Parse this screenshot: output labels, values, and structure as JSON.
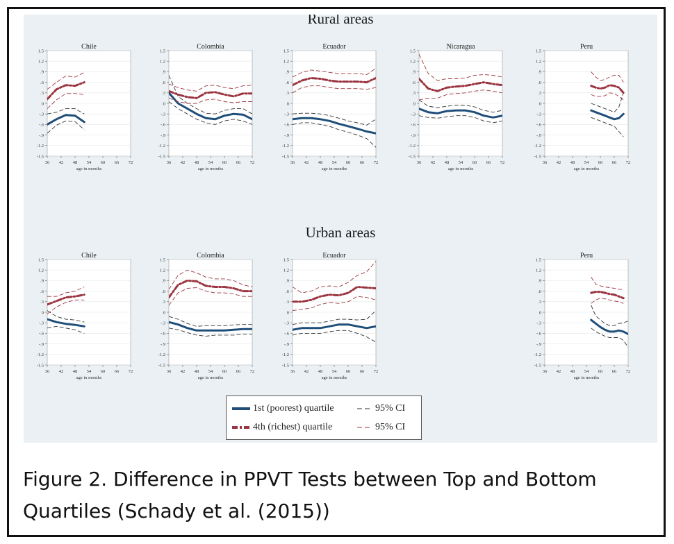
{
  "caption_line1": "Figure 2.  Difference in PPVT Tests between Top and Bottom",
  "caption_line2": "Quartiles  (Schady et al. (2015))",
  "rural_title": "Rural areas",
  "urban_title": "Urban areas",
  "legend": {
    "q1_label": "1st (poorest) quartile",
    "q4_label": "4th (richest) quartile",
    "ci_label_1": "95% CI",
    "ci_label_2": "95% CI"
  },
  "colors": {
    "q1": "#1f4e79",
    "q4": "#9b3540",
    "ci": "#333333"
  },
  "chart_data": [
    {
      "type": "line",
      "group": "Rural areas",
      "title": "Chile",
      "xlabel": "age in months",
      "xlim": [
        36,
        72
      ],
      "ylim": [
        -1.5,
        1.5
      ],
      "series": [
        {
          "name": "1st (poorest) quartile",
          "x": [
            36,
            40,
            44,
            48,
            52
          ],
          "y": [
            -0.6,
            -0.45,
            -0.33,
            -0.35,
            -0.53
          ],
          "ci_low": [
            -0.85,
            -0.62,
            -0.5,
            -0.52,
            -0.75
          ],
          "ci_high": [
            -0.3,
            -0.25,
            -0.15,
            -0.15,
            -0.3
          ]
        },
        {
          "name": "4th (richest) quartile",
          "x": [
            36,
            40,
            44,
            48,
            52
          ],
          "y": [
            0.12,
            0.4,
            0.52,
            0.5,
            0.6
          ],
          "ci_low": [
            -0.15,
            0.1,
            0.28,
            0.28,
            0.25
          ],
          "ci_high": [
            0.4,
            0.6,
            0.78,
            0.75,
            0.88
          ]
        }
      ]
    },
    {
      "type": "line",
      "group": "Rural areas",
      "title": "Colombia",
      "xlabel": "age in months",
      "xlim": [
        36,
        72
      ],
      "ylim": [
        -1.5,
        1.5
      ],
      "series": [
        {
          "name": "1st (poorest) quartile",
          "x": [
            36,
            40,
            44,
            48,
            52,
            56,
            60,
            64,
            68,
            72
          ],
          "y": [
            0.3,
            0,
            -0.15,
            -0.3,
            -0.42,
            -0.45,
            -0.35,
            -0.3,
            -0.32,
            -0.45
          ],
          "ci_low": [
            0.05,
            -0.15,
            -0.3,
            -0.45,
            -0.55,
            -0.6,
            -0.5,
            -0.45,
            -0.5,
            -0.6
          ],
          "ci_high": [
            0.8,
            0.2,
            0,
            -0.15,
            -0.28,
            -0.3,
            -0.2,
            -0.15,
            -0.15,
            -0.3
          ]
        },
        {
          "name": "4th (richest) quartile",
          "x": [
            36,
            40,
            44,
            48,
            52,
            56,
            60,
            64,
            68,
            72
          ],
          "y": [
            0.35,
            0.25,
            0.18,
            0.15,
            0.3,
            0.32,
            0.25,
            0.2,
            0.28,
            0.28
          ],
          "ci_low": [
            0.15,
            0.05,
            0,
            0,
            0.1,
            0.12,
            0.05,
            0.02,
            0.05,
            0.05
          ],
          "ci_high": [
            0.55,
            0.45,
            0.38,
            0.35,
            0.5,
            0.52,
            0.45,
            0.42,
            0.5,
            0.52
          ]
        }
      ]
    },
    {
      "type": "line",
      "group": "Rural areas",
      "title": "Ecuador",
      "xlabel": "age in months",
      "xlim": [
        36,
        72
      ],
      "ylim": [
        -1.5,
        1.5
      ],
      "series": [
        {
          "name": "1st (poorest) quartile",
          "x": [
            36,
            40,
            44,
            48,
            52,
            56,
            60,
            64,
            68,
            72
          ],
          "y": [
            -0.45,
            -0.42,
            -0.42,
            -0.45,
            -0.5,
            -0.58,
            -0.65,
            -0.72,
            -0.8,
            -0.85
          ],
          "ci_low": [
            -0.6,
            -0.55,
            -0.55,
            -0.6,
            -0.65,
            -0.75,
            -0.82,
            -0.9,
            -1.0,
            -1.25
          ],
          "ci_high": [
            -0.3,
            -0.28,
            -0.28,
            -0.3,
            -0.35,
            -0.42,
            -0.5,
            -0.55,
            -0.62,
            -0.45
          ]
        },
        {
          "name": "4th (richest) quartile",
          "x": [
            36,
            40,
            44,
            48,
            52,
            56,
            60,
            64,
            68,
            72
          ],
          "y": [
            0.52,
            0.65,
            0.72,
            0.7,
            0.65,
            0.62,
            0.62,
            0.62,
            0.6,
            0.72
          ],
          "ci_low": [
            0.3,
            0.45,
            0.5,
            0.5,
            0.45,
            0.42,
            0.42,
            0.42,
            0.4,
            0.45
          ],
          "ci_high": [
            0.75,
            0.88,
            0.95,
            0.92,
            0.88,
            0.85,
            0.85,
            0.85,
            0.82,
            1.0
          ]
        }
      ]
    },
    {
      "type": "line",
      "group": "Rural areas",
      "title": "Nicaragua",
      "xlabel": "age in months",
      "xlim": [
        36,
        72
      ],
      "ylim": [
        -1.5,
        1.5
      ],
      "series": [
        {
          "name": "1st (poorest) quartile",
          "x": [
            36,
            40,
            44,
            48,
            52,
            56,
            60,
            64,
            68,
            72
          ],
          "y": [
            -0.15,
            -0.25,
            -0.28,
            -0.22,
            -0.2,
            -0.2,
            -0.25,
            -0.35,
            -0.4,
            -0.35
          ],
          "ci_low": [
            -0.35,
            -0.4,
            -0.42,
            -0.38,
            -0.35,
            -0.35,
            -0.4,
            -0.5,
            -0.55,
            -0.5
          ],
          "ci_high": [
            0.1,
            -0.08,
            -0.12,
            -0.08,
            -0.05,
            -0.05,
            -0.1,
            -0.2,
            -0.25,
            -0.2
          ]
        },
        {
          "name": "4th (richest) quartile",
          "x": [
            36,
            40,
            44,
            48,
            52,
            56,
            60,
            64,
            68,
            72
          ],
          "y": [
            0.7,
            0.42,
            0.35,
            0.45,
            0.48,
            0.5,
            0.55,
            0.6,
            0.55,
            0.52
          ],
          "ci_low": [
            0.1,
            0.15,
            0.15,
            0.25,
            0.28,
            0.3,
            0.35,
            0.38,
            0.35,
            0.3
          ],
          "ci_high": [
            1.4,
            0.85,
            0.65,
            0.7,
            0.7,
            0.72,
            0.8,
            0.82,
            0.8,
            0.75
          ]
        }
      ]
    },
    {
      "type": "line",
      "group": "Rural areas",
      "title": "Peru",
      "xlabel": "age in months",
      "xlim": [
        36,
        72
      ],
      "ylim": [
        -1.5,
        1.5
      ],
      "series": [
        {
          "name": "1st (poorest) quartile",
          "x": [
            56,
            58,
            60,
            62,
            64,
            66,
            68,
            70
          ],
          "y": [
            -0.2,
            -0.25,
            -0.3,
            -0.35,
            -0.4,
            -0.45,
            -0.42,
            -0.3
          ],
          "ci_low": [
            -0.4,
            -0.45,
            -0.5,
            -0.55,
            -0.6,
            -0.65,
            -0.8,
            -0.95
          ],
          "ci_high": [
            0,
            -0.05,
            -0.1,
            -0.15,
            -0.2,
            -0.25,
            -0.1,
            0.3
          ]
        },
        {
          "name": "4th (richest) quartile",
          "x": [
            56,
            58,
            60,
            62,
            64,
            66,
            68,
            70
          ],
          "y": [
            0.5,
            0.45,
            0.42,
            0.45,
            0.52,
            0.5,
            0.45,
            0.3
          ],
          "ci_low": [
            0.25,
            0.2,
            0.2,
            0.22,
            0.3,
            0.28,
            0.2,
            0.1
          ],
          "ci_high": [
            0.9,
            0.75,
            0.65,
            0.68,
            0.75,
            0.8,
            0.8,
            0.6
          ]
        }
      ]
    },
    {
      "type": "line",
      "group": "Urban areas",
      "title": "Chile",
      "xlabel": "age in months",
      "xlim": [
        36,
        72
      ],
      "ylim": [
        -1.5,
        1.5
      ],
      "series": [
        {
          "name": "1st (poorest) quartile",
          "x": [
            36,
            40,
            44,
            48,
            52
          ],
          "y": [
            -0.2,
            -0.28,
            -0.33,
            -0.36,
            -0.4
          ],
          "ci_low": [
            -0.45,
            -0.4,
            -0.45,
            -0.5,
            -0.6
          ],
          "ci_high": [
            0.05,
            -0.12,
            -0.2,
            -0.22,
            -0.28
          ]
        },
        {
          "name": "4th (richest) quartile",
          "x": [
            36,
            40,
            44,
            48,
            52
          ],
          "y": [
            0.22,
            0.32,
            0.42,
            0.45,
            0.5
          ],
          "ci_low": [
            -0.05,
            0.15,
            0.28,
            0.35,
            0.35
          ],
          "ci_high": [
            0.45,
            0.45,
            0.55,
            0.6,
            0.72
          ]
        }
      ]
    },
    {
      "type": "line",
      "group": "Urban areas",
      "title": "Colombia",
      "xlabel": "age in months",
      "xlim": [
        36,
        72
      ],
      "ylim": [
        -1.5,
        1.5
      ],
      "series": [
        {
          "name": "1st (poorest) quartile",
          "x": [
            36,
            40,
            44,
            48,
            52,
            56,
            60,
            64,
            68,
            72
          ],
          "y": [
            -0.28,
            -0.35,
            -0.45,
            -0.52,
            -0.52,
            -0.52,
            -0.52,
            -0.5,
            -0.48,
            -0.48
          ],
          "ci_low": [
            -0.45,
            -0.5,
            -0.58,
            -0.65,
            -0.68,
            -0.65,
            -0.65,
            -0.65,
            -0.62,
            -0.62
          ],
          "ci_high": [
            -0.12,
            -0.2,
            -0.32,
            -0.4,
            -0.38,
            -0.38,
            -0.38,
            -0.36,
            -0.35,
            -0.35
          ]
        },
        {
          "name": "4th (richest) quartile",
          "x": [
            36,
            40,
            44,
            48,
            52,
            56,
            60,
            64,
            68,
            72
          ],
          "y": [
            0.42,
            0.78,
            0.9,
            0.88,
            0.75,
            0.72,
            0.72,
            0.68,
            0.6,
            0.6
          ],
          "ci_low": [
            0.2,
            0.55,
            0.68,
            0.7,
            0.6,
            0.55,
            0.55,
            0.52,
            0.45,
            0.45
          ],
          "ci_high": [
            0.65,
            1.05,
            1.2,
            1.12,
            1.0,
            0.95,
            0.95,
            0.9,
            0.78,
            0.72
          ]
        }
      ]
    },
    {
      "type": "line",
      "group": "Urban areas",
      "title": "Ecuador",
      "xlabel": "age in months",
      "xlim": [
        36,
        72
      ],
      "ylim": [
        -1.5,
        1.5
      ],
      "series": [
        {
          "name": "1st (poorest) quartile",
          "x": [
            36,
            40,
            44,
            48,
            52,
            56,
            60,
            64,
            68,
            72
          ],
          "y": [
            -0.5,
            -0.45,
            -0.45,
            -0.45,
            -0.4,
            -0.35,
            -0.35,
            -0.4,
            -0.45,
            -0.4
          ],
          "ci_low": [
            -0.65,
            -0.6,
            -0.6,
            -0.6,
            -0.55,
            -0.52,
            -0.52,
            -0.6,
            -0.7,
            -0.85
          ],
          "ci_high": [
            -0.35,
            -0.3,
            -0.3,
            -0.3,
            -0.25,
            -0.2,
            -0.2,
            -0.22,
            -0.2,
            0.05
          ]
        },
        {
          "name": "4th (richest) quartile",
          "x": [
            36,
            40,
            44,
            48,
            52,
            56,
            60,
            64,
            68,
            72
          ],
          "y": [
            0.3,
            0.3,
            0.35,
            0.45,
            0.5,
            0.48,
            0.55,
            0.72,
            0.7,
            0.68
          ],
          "ci_low": [
            0.05,
            0.08,
            0.12,
            0.22,
            0.28,
            0.25,
            0.3,
            0.45,
            0.42,
            0.35
          ],
          "ci_high": [
            0.72,
            0.55,
            0.6,
            0.72,
            0.75,
            0.72,
            0.85,
            1.05,
            1.15,
            1.45
          ]
        }
      ]
    },
    {
      "type": "line",
      "group": "Urban areas",
      "title": "Peru",
      "xlabel": "age in months",
      "xlim": [
        36,
        72
      ],
      "ylim": [
        -1.5,
        1.5
      ],
      "series": [
        {
          "name": "1st (poorest) quartile",
          "x": [
            56,
            58,
            60,
            62,
            64,
            66,
            68,
            70,
            72
          ],
          "y": [
            -0.22,
            -0.32,
            -0.42,
            -0.5,
            -0.55,
            -0.55,
            -0.52,
            -0.55,
            -0.62
          ],
          "ci_low": [
            -0.45,
            -0.55,
            -0.62,
            -0.68,
            -0.72,
            -0.72,
            -0.72,
            -0.8,
            -1.0
          ],
          "ci_high": [
            0.2,
            -0.1,
            -0.22,
            -0.32,
            -0.38,
            -0.38,
            -0.32,
            -0.3,
            -0.25
          ]
        },
        {
          "name": "4th (richest) quartile",
          "x": [
            56,
            58,
            60,
            62,
            64,
            66,
            68,
            70
          ],
          "y": [
            0.55,
            0.58,
            0.58,
            0.55,
            0.52,
            0.5,
            0.45,
            0.4
          ],
          "ci_low": [
            0.25,
            0.35,
            0.4,
            0.38,
            0.35,
            0.32,
            0.3,
            0.25
          ],
          "ci_high": [
            1.0,
            0.8,
            0.75,
            0.72,
            0.7,
            0.68,
            0.65,
            0.65
          ]
        }
      ]
    }
  ]
}
